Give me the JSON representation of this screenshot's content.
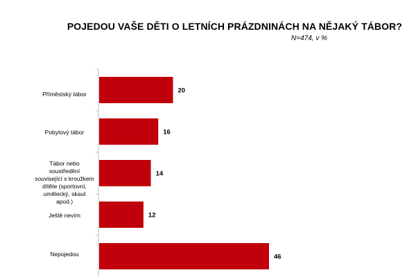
{
  "chart_data": {
    "type": "bar",
    "orientation": "horizontal",
    "title": "POJEDOU VAŠE DĚTI O LETNÍCH PRÁZDNINÁCH NA NĚJAKÝ TÁBOR?",
    "subtitle": "N=474, v %",
    "categories": [
      "Příměstský tábor",
      "Pobytový tábor",
      "Tábor nebo soustředění související s kroužkem dítěte (sportovní, umělecký, skaut apod.)",
      "Ještě nevím",
      "Nepojedou"
    ],
    "values": [
      20,
      16,
      14,
      12,
      46
    ],
    "xlim": [
      0,
      50
    ],
    "grid": false,
    "legend": "none",
    "bar_color": "#c0000b"
  }
}
